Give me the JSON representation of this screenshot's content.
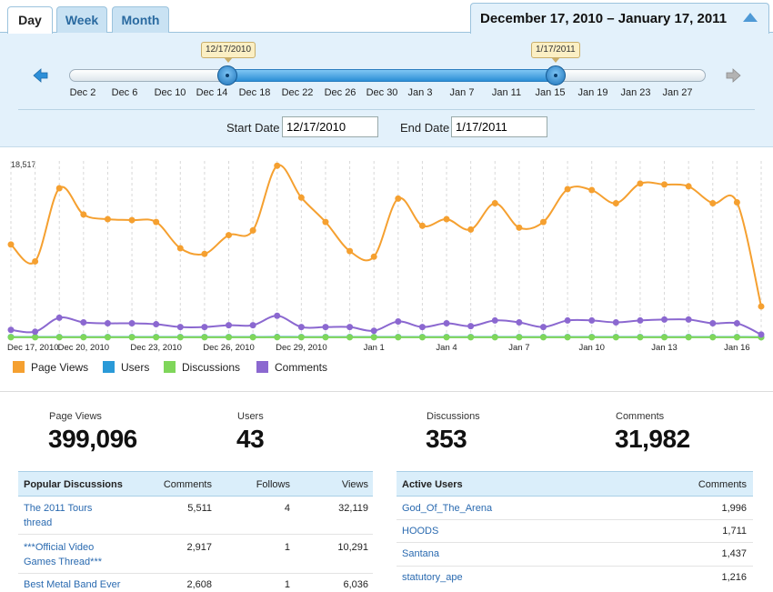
{
  "tabs": [
    "Day",
    "Week",
    "Month"
  ],
  "active_tab": "Day",
  "range_title": "December 17, 2010 – January 17, 2011",
  "slider": {
    "start_bubble": "12/17/2010",
    "end_bubble": "1/17/2011",
    "ticks": [
      "Dec 2",
      "Dec 6",
      "Dec 10",
      "Dec 14",
      "Dec 18",
      "Dec 22",
      "Dec 26",
      "Dec 30",
      "Jan 3",
      "Jan 7",
      "Jan 11",
      "Jan 15",
      "Jan 19",
      "Jan 23",
      "Jan 27"
    ]
  },
  "filters": {
    "start_label": "Start Date",
    "start_value": "12/17/2010",
    "end_label": "End Date",
    "end_value": "1/17/2011"
  },
  "chart_data": {
    "type": "line",
    "y_max_label": "18,517",
    "ylim": [
      0,
      18517
    ],
    "grid": "vertical dashed",
    "x_tick_labels": [
      "Dec 17, 2010",
      "Dec 20, 2010",
      "Dec 23, 2010",
      "Dec 26, 2010",
      "Dec 29, 2010",
      "Jan 1",
      "Jan 4",
      "Jan 7",
      "Jan 10",
      "Jan 13",
      "Jan 16"
    ],
    "x": [
      "Dec 17",
      "Dec 18",
      "Dec 19",
      "Dec 20",
      "Dec 21",
      "Dec 22",
      "Dec 23",
      "Dec 24",
      "Dec 25",
      "Dec 26",
      "Dec 27",
      "Dec 28",
      "Dec 29",
      "Dec 30",
      "Dec 31",
      "Jan 1",
      "Jan 2",
      "Jan 3",
      "Jan 4",
      "Jan 5",
      "Jan 6",
      "Jan 7",
      "Jan 8",
      "Jan 9",
      "Jan 10",
      "Jan 11",
      "Jan 12",
      "Jan 13",
      "Jan 14",
      "Jan 15",
      "Jan 16",
      "Jan 17"
    ],
    "series": [
      {
        "name": "Page Views",
        "color": "#f5a030",
        "values": [
          9900,
          8100,
          15900,
          13100,
          12600,
          12500,
          12300,
          9500,
          8900,
          10900,
          11400,
          18300,
          14900,
          12300,
          9200,
          8600,
          14800,
          11900,
          12600,
          11500,
          14300,
          11700,
          12300,
          15800,
          15700,
          14300,
          16400,
          16300,
          16100,
          14300,
          14400,
          3300
        ]
      },
      {
        "name": "Users",
        "color": "#2a9ad8",
        "values": [
          40,
          40,
          42,
          41,
          41,
          40,
          40,
          40,
          40,
          40,
          41,
          43,
          42,
          40,
          40,
          40,
          40,
          40,
          41,
          40,
          40,
          41,
          40,
          40,
          41,
          41,
          40,
          42,
          41,
          40,
          40,
          30
        ]
      },
      {
        "name": "Discussions",
        "color": "#7fd65a",
        "values": [
          15,
          10,
          14,
          12,
          11,
          12,
          10,
          11,
          9,
          10,
          12,
          16,
          13,
          12,
          10,
          10,
          13,
          11,
          12,
          11,
          13,
          12,
          11,
          13,
          12,
          12,
          13,
          13,
          12,
          12,
          13,
          4
        ]
      },
      {
        "name": "Comments",
        "color": "#8b68d0",
        "values": [
          800,
          600,
          2100,
          1600,
          1500,
          1500,
          1400,
          1100,
          1100,
          1300,
          1300,
          2300,
          1100,
          1100,
          1100,
          700,
          1700,
          1100,
          1500,
          1200,
          1800,
          1600,
          1100,
          1800,
          1800,
          1600,
          1800,
          1900,
          1900,
          1500,
          1500,
          300
        ]
      }
    ]
  },
  "legend": [
    {
      "label": "Page Views",
      "color": "#f5a030"
    },
    {
      "label": "Users",
      "color": "#2a9ad8"
    },
    {
      "label": "Discussions",
      "color": "#7fd65a"
    },
    {
      "label": "Comments",
      "color": "#8b68d0"
    }
  ],
  "stats": [
    {
      "label": "Page Views",
      "value": "399,096"
    },
    {
      "label": "Users",
      "value": "43"
    },
    {
      "label": "Discussions",
      "value": "353"
    },
    {
      "label": "Comments",
      "value": "31,982"
    }
  ],
  "popular_discussions": {
    "title": "Popular Discussions",
    "col_comments": "Comments",
    "col_follows": "Follows",
    "col_views": "Views",
    "rows": [
      {
        "title_1": "The 2011 Tours",
        "title_2": "thread",
        "comments": "5,511",
        "follows": "4",
        "views": "32,119"
      },
      {
        "title_1": "***Official Video",
        "title_2": "Games Thread***",
        "comments": "2,917",
        "follows": "1",
        "views": "10,291"
      },
      {
        "title_1": "Best Metal Band Ever",
        "title_2": "",
        "comments": "2,608",
        "follows": "1",
        "views": "6,036"
      }
    ]
  },
  "active_users": {
    "title": "Active Users",
    "col_comments": "Comments",
    "rows": [
      {
        "name": "God_Of_The_Arena",
        "comments": "1,996"
      },
      {
        "name": "HOODS",
        "comments": "1,711"
      },
      {
        "name": "Santana",
        "comments": "1,437"
      },
      {
        "name": "statutory_ape",
        "comments": "1,216"
      }
    ]
  }
}
